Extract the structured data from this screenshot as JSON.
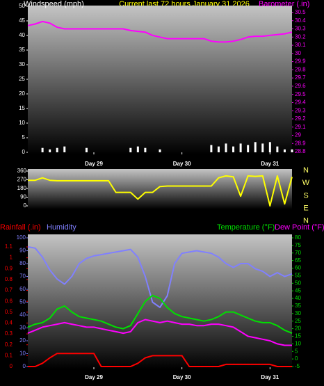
{
  "chart_data": [
    {
      "type": "combo",
      "title": "Current last 72 hours January 31 2026",
      "categories": [
        null,
        null,
        null,
        null,
        null,
        null,
        null,
        null,
        null,
        "Day 29",
        null,
        null,
        null,
        null,
        null,
        null,
        null,
        null,
        null,
        null,
        null,
        "Day 30",
        null,
        null,
        null,
        null,
        null,
        null,
        null,
        null,
        null,
        null,
        null,
        "Day 31",
        null,
        null,
        null
      ],
      "series": [
        {
          "name": "Windspeed (mph)",
          "type": "bar",
          "color": "#ffffff",
          "values": [
            0,
            0,
            1.5,
            1,
            1.5,
            2,
            0,
            0,
            1.5,
            0,
            0,
            0,
            0,
            0,
            1.5,
            2,
            1.5,
            0,
            1,
            0,
            0,
            0,
            0,
            0,
            0,
            2.5,
            2,
            3,
            2,
            3,
            2.5,
            3.5,
            3,
            3.5,
            2,
            1,
            1
          ]
        },
        {
          "name": "Barometer (.in)",
          "type": "line",
          "axis": "y2",
          "color": "#ff00ff",
          "values": [
            30.34,
            30.36,
            30.39,
            30.37,
            30.32,
            30.3,
            30.3,
            30.3,
            30.3,
            30.3,
            30.3,
            30.3,
            30.3,
            30.3,
            30.28,
            30.27,
            30.26,
            30.22,
            30.2,
            30.18,
            30.18,
            30.18,
            30.18,
            30.18,
            30.18,
            30.15,
            30.14,
            30.14,
            30.15,
            30.17,
            30.2,
            30.21,
            30.21,
            30.22,
            30.23,
            30.24,
            30.26
          ]
        }
      ],
      "ylim": [
        0,
        50
      ],
      "yticks": [
        0,
        5,
        10,
        15,
        20,
        25,
        30,
        35,
        40,
        45,
        50
      ],
      "y2lim": [
        28.8,
        30.5
      ],
      "y2ticks": [
        28.8,
        28.9,
        29,
        29.1,
        29.2,
        29.3,
        29.4,
        29.5,
        29.6,
        29.7,
        29.8,
        29.9,
        30,
        30.1,
        30.2,
        30.3,
        30.4,
        30.5
      ]
    },
    {
      "type": "line",
      "categories": [
        null,
        null,
        null,
        null,
        null,
        null,
        null,
        null,
        null,
        null,
        null,
        null,
        null,
        null,
        null,
        null,
        null,
        null,
        null,
        null,
        null,
        null,
        null,
        null,
        null,
        null,
        null,
        null,
        null,
        null,
        null,
        null,
        null,
        null,
        null,
        null,
        null
      ],
      "color": "#ffff00",
      "values": [
        265,
        265,
        290,
        265,
        260,
        260,
        260,
        260,
        260,
        260,
        260,
        260,
        140,
        140,
        140,
        70,
        140,
        140,
        200,
        205,
        205,
        205,
        205,
        205,
        205,
        205,
        290,
        310,
        300,
        100,
        310,
        305,
        310,
        0,
        310,
        20,
        300
      ],
      "ylim": [
        0,
        360
      ],
      "yticks": [
        0,
        90,
        180,
        270,
        360
      ],
      "compass_labels": [
        "N",
        "W",
        "S",
        "E",
        "N"
      ]
    },
    {
      "type": "combo",
      "categories": [
        null,
        null,
        null,
        null,
        null,
        null,
        null,
        null,
        null,
        "Day 29",
        null,
        null,
        null,
        null,
        null,
        null,
        null,
        null,
        null,
        null,
        null,
        "Day 30",
        null,
        null,
        null,
        null,
        null,
        null,
        null,
        null,
        null,
        null,
        null,
        "Day 31",
        null,
        null,
        null
      ],
      "series": [
        {
          "name": "Rainfall (.in)",
          "type": "line",
          "axis": "y3",
          "color": "#ff0000",
          "values": [
            0,
            0,
            0.03,
            0.08,
            0.12,
            0.12,
            0.12,
            0.12,
            0.12,
            0.12,
            0,
            0,
            0,
            0,
            0,
            0.03,
            0.08,
            0.1,
            0.1,
            0.1,
            0.1,
            0.1,
            0,
            0,
            0,
            0,
            0,
            0.02,
            0.02,
            0.02,
            0.02,
            0.02,
            0.02,
            0.02,
            0,
            0,
            0
          ]
        },
        {
          "name": "Humidity",
          "type": "line",
          "axis": "y",
          "color": "#8080ff",
          "values": [
            93,
            92,
            85,
            75,
            68,
            64,
            70,
            80,
            84,
            86,
            87,
            88,
            89,
            90,
            91,
            85,
            70,
            50,
            46,
            55,
            80,
            88,
            89,
            90,
            89,
            88,
            85,
            80,
            77,
            80,
            80,
            76,
            74,
            70,
            73,
            70,
            72
          ]
        },
        {
          "name": "Temperature (°F)",
          "type": "line",
          "axis": "y2",
          "color": "#00e000",
          "values": [
            21,
            23,
            24,
            27,
            33,
            35,
            31,
            28,
            27,
            26,
            25,
            23,
            21,
            20,
            22,
            30,
            38,
            42,
            40,
            34,
            30,
            28,
            27,
            26,
            25,
            26,
            28,
            31,
            31,
            29,
            27,
            25,
            24,
            24,
            22,
            19,
            17
          ]
        },
        {
          "name": "Dew Point (°F)",
          "type": "line",
          "axis": "y2",
          "color": "#ff00ff",
          "values": [
            17,
            19,
            21,
            22,
            23,
            24,
            23,
            22,
            21,
            21,
            20,
            19,
            18,
            17,
            18,
            24,
            26,
            25,
            24,
            25,
            24,
            23,
            23,
            22,
            22,
            23,
            23,
            22,
            21,
            18,
            15,
            14,
            13,
            12,
            10,
            9,
            9
          ]
        }
      ],
      "ylim": [
        0,
        100
      ],
      "yticks": [
        0,
        10,
        20,
        30,
        40,
        50,
        60,
        70,
        80,
        90,
        100
      ],
      "y2lim": [
        -5,
        80
      ],
      "y2ticks": [
        -5,
        0,
        5,
        10,
        15,
        20,
        25,
        30,
        35,
        40,
        45,
        50,
        55,
        60,
        65,
        70,
        75,
        80
      ],
      "y3lim": [
        0,
        1.1
      ],
      "y3ticks": [
        0,
        0.1,
        0.2,
        0.3,
        0.4,
        0.5,
        0.6,
        0.7,
        0.8,
        0.9,
        1,
        1.1
      ]
    }
  ]
}
